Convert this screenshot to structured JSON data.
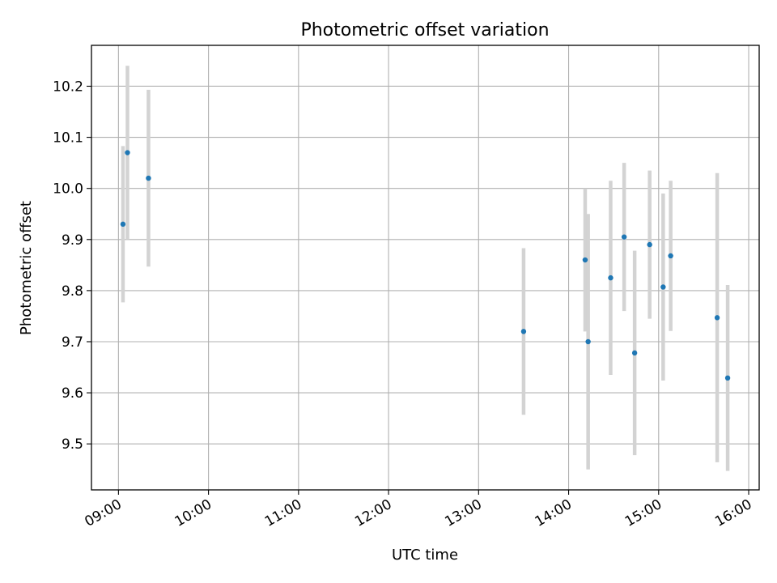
{
  "chart_data": {
    "type": "scatter",
    "title": "Photometric offset variation",
    "xlabel": "UTC time",
    "ylabel": "Photometric offset",
    "x_ticks": [
      "09:00",
      "10:00",
      "11:00",
      "12:00",
      "13:00",
      "14:00",
      "15:00",
      "16:00"
    ],
    "y_ticks": [
      "9.5",
      "9.6",
      "9.7",
      "9.8",
      "9.9",
      "10.0",
      "10.1",
      "10.2"
    ],
    "xlim": [
      "08:42",
      "16:07"
    ],
    "ylim": [
      9.41,
      10.28
    ],
    "grid": true,
    "series": [
      {
        "marker_color": "#1f77b4",
        "errorbar_color": "#d3d3d3",
        "points": [
          {
            "x": "09:03",
            "y": 9.93,
            "yerr": 0.153
          },
          {
            "x": "09:06",
            "y": 10.07,
            "yerr": 0.17
          },
          {
            "x": "09:20",
            "y": 10.02,
            "yerr": 0.173
          },
          {
            "x": "13:30",
            "y": 9.72,
            "yerr": 0.163
          },
          {
            "x": "14:11",
            "y": 9.86,
            "yerr": 0.14
          },
          {
            "x": "14:13",
            "y": 9.7,
            "yerr": 0.25
          },
          {
            "x": "14:28",
            "y": 9.825,
            "yerr": 0.19
          },
          {
            "x": "14:37",
            "y": 9.905,
            "yerr": 0.145
          },
          {
            "x": "14:44",
            "y": 9.678,
            "yerr": 0.2
          },
          {
            "x": "14:54",
            "y": 9.89,
            "yerr": 0.145
          },
          {
            "x": "15:03",
            "y": 9.807,
            "yerr": 0.183
          },
          {
            "x": "15:08",
            "y": 9.868,
            "yerr": 0.147
          },
          {
            "x": "15:39",
            "y": 9.747,
            "yerr": 0.283
          },
          {
            "x": "15:46",
            "y": 9.629,
            "yerr": 0.182
          }
        ]
      }
    ]
  }
}
